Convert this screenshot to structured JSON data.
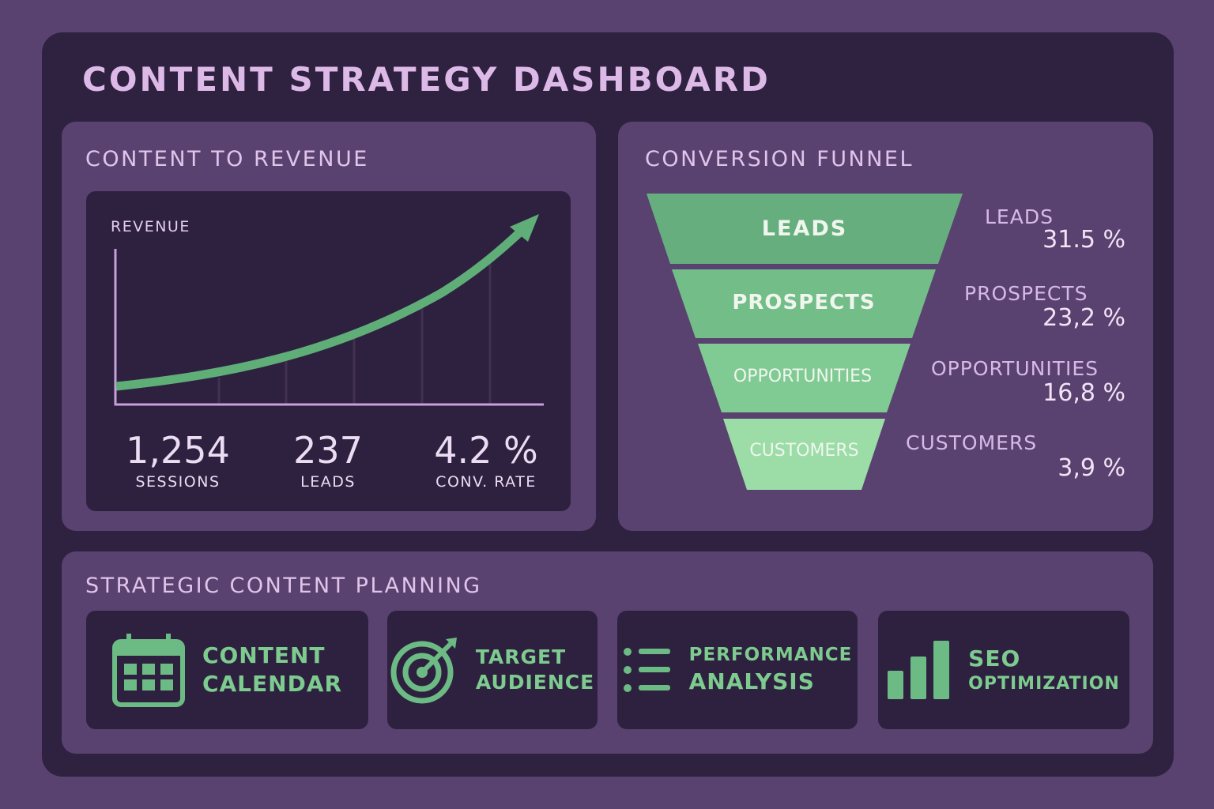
{
  "title": "CONTENT STRATEGY DASHBOARD",
  "revenue_card": {
    "title": "CONTENT TO REVENUE",
    "axis_label": "REVENUE",
    "stats": [
      {
        "value": "1,254",
        "label": "SESSIONS"
      },
      {
        "value": "237",
        "label": "LEADS"
      },
      {
        "value": "4.2 %",
        "label": "CONV. RATE"
      }
    ]
  },
  "funnel_card": {
    "title": "CONVERSION FUNNEL",
    "stages": [
      {
        "name": "LEADS",
        "side_label": "LEADS",
        "value": "31.5 %"
      },
      {
        "name": "PROSPECTS",
        "side_label": "PROSPECTS",
        "value": "23,2 %"
      },
      {
        "name": "OPPORTUNITIES",
        "side_label": "OPPORTUNITIES",
        "value": "16,8 %"
      },
      {
        "name": "CUSTOMERS",
        "side_label": "CUSTOMERS",
        "value": "3,9 %"
      }
    ]
  },
  "planning": {
    "title": "STRATEGIC CONTENT PLANNING",
    "tiles": [
      {
        "icon": "calendar-icon",
        "line1": "CONTENT",
        "line2": "CALENDAR"
      },
      {
        "icon": "target-icon",
        "line1": "TARGET",
        "line2": "AUDIENCE"
      },
      {
        "icon": "list-icon",
        "line1": "PERFORMANCE",
        "line2": "ANALYSIS"
      },
      {
        "icon": "bar-chart-icon",
        "line1": "SEO",
        "line2": "OPTIMIZATION"
      }
    ]
  },
  "colors": {
    "bg": "#5a4270",
    "panel": "#2f2140",
    "accent": "#6dbb84",
    "text": "#dcb9e6"
  },
  "chart_data": {
    "type": "bar",
    "title": "CONVERSION FUNNEL",
    "categories": [
      "LEADS",
      "PROSPECTS",
      "OPPORTUNITIES",
      "CUSTOMERS"
    ],
    "values": [
      31.5,
      23.2,
      16.8,
      3.9
    ],
    "ylabel": "%"
  }
}
